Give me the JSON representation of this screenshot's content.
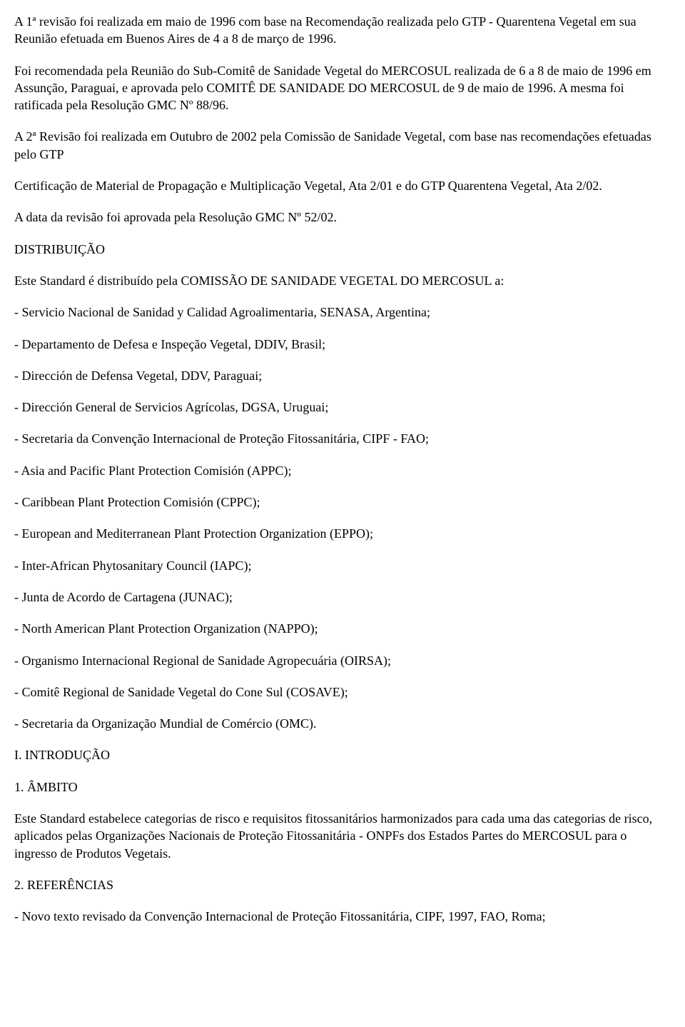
{
  "p1": "A 1ª revisão foi realizada em maio de 1996 com base na Recomendação realizada pelo GTP - Quarentena Vegetal em sua Reunião efetuada em Buenos Aires de 4 a 8 de março de 1996.",
  "p2": "Foi recomendada pela Reunião do Sub-Comitê de Sanidade Vegetal do MERCOSUL realizada de 6 a 8 de maio de 1996 em Assunção, Paraguai, e aprovada pelo COMITÊ DE SANIDADE DO MERCOSUL de 9 de maio de 1996. A mesma foi ratificada pela Resolução GMC Nº 88/96.",
  "p3": "A 2ª Revisão foi realizada em Outubro de 2002 pela Comissão de Sanidade Vegetal, com base nas recomendações efetuadas pelo GTP",
  "p4": "Certificação de Material de Propagação e Multiplicação Vegetal, Ata 2/01 e do GTP Quarentena Vegetal, Ata 2/02.",
  "p5": "A data da revisão foi aprovada pela Resolução GMC Nº 52/02.",
  "h_distribuicao": "DISTRIBUIÇÃO",
  "p6": "Este Standard é distribuído pela COMISSÃO DE SANIDADE VEGETAL DO MERCOSUL a:",
  "dist": [
    "- Servicio Nacional de Sanidad y Calidad Agroalimentaria, SENASA, Argentina;",
    "- Departamento de Defesa e Inspeção Vegetal, DDIV, Brasil;",
    "- Dirección de Defensa Vegetal, DDV, Paraguai;",
    "- Dirección General de Servicios Agrícolas, DGSA, Uruguai;",
    "- Secretaria da Convenção Internacional de Proteção Fitossanitária, CIPF - FAO;",
    "- Asia and Pacific Plant Protection Comisión (APPC);",
    "- Caribbean Plant Protection Comisión (CPPC);",
    "- European and Mediterranean Plant Protection Organization (EPPO);",
    "- Inter-African Phytosanitary Council (IAPC);",
    "- Junta de Acordo de Cartagena (JUNAC);",
    "- North American Plant Protection Organization (NAPPO);",
    "- Organismo Internacional Regional de Sanidade Agropecuária (OIRSA);",
    "- Comitê Regional de Sanidade Vegetal do Cone Sul (COSAVE);",
    "- Secretaria da Organização Mundial de Comércio (OMC)."
  ],
  "h_intro": "I. INTRODUÇÃO",
  "h_ambito": "1. ÂMBITO",
  "p7": "Este Standard estabelece categorias de risco e requisitos fitossanitários harmonizados para cada uma das categorias de risco, aplicados pelas Organizações Nacionais de Proteção Fitossanitária - ONPFs dos Estados Partes do MERCOSUL para o ingresso de Produtos Vegetais.",
  "h_ref": "2. REFERÊNCIAS",
  "ref1": "- Novo texto revisado da Convenção Internacional de Proteção Fitossanitária, CIPF, 1997, FAO, Roma;"
}
